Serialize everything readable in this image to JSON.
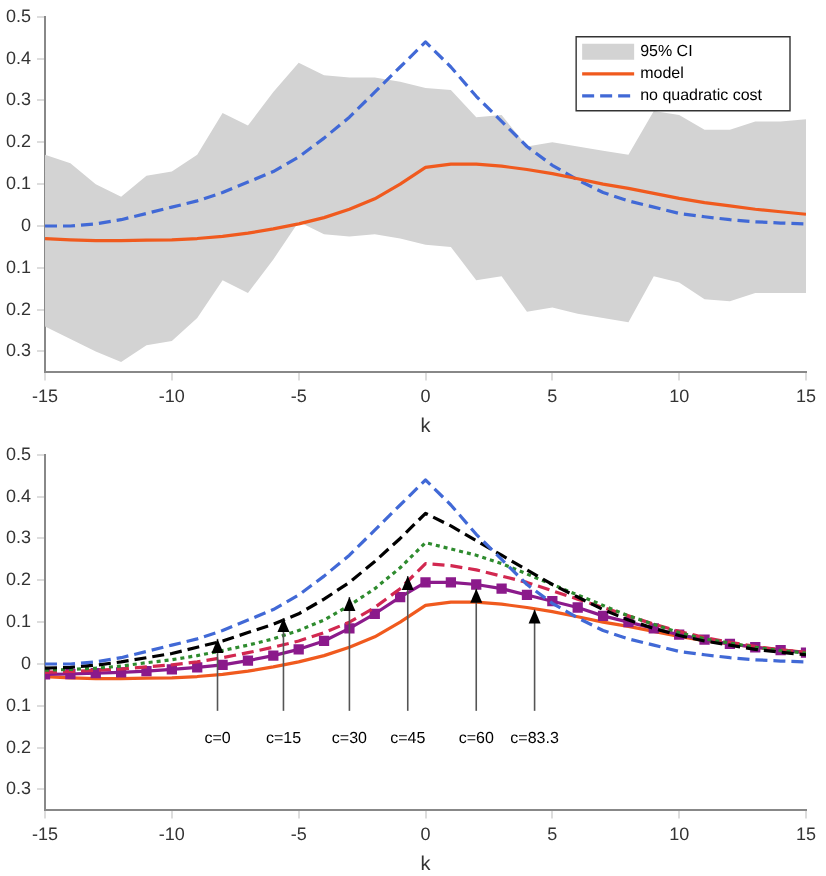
{
  "chart_data": [
    {
      "type": "line",
      "xlabel": "k",
      "x": [
        -15,
        -14,
        -13,
        -12,
        -11,
        -10,
        -9,
        -8,
        -7,
        -6,
        -5,
        -4,
        -3,
        -2,
        -1,
        0,
        1,
        2,
        3,
        4,
        5,
        6,
        7,
        8,
        9,
        10,
        11,
        12,
        13,
        14,
        15
      ],
      "xlim": [
        -15,
        15
      ],
      "xticks": [
        -15,
        -10,
        -5,
        0,
        5,
        10,
        15
      ],
      "ylim": [
        -0.35,
        0.5
      ],
      "yticks": [
        {
          "value": -0.3,
          "label": "0.3"
        },
        {
          "value": -0.2,
          "label": "0.2"
        },
        {
          "value": -0.1,
          "label": "0.1"
        },
        0,
        0.1,
        0.2,
        0.3,
        0.4,
        0.5
      ],
      "grid": false,
      "legend": "top right",
      "series": [
        {
          "name": "95% CI",
          "type": "area",
          "color": "#d3d3d3",
          "values": [
            null,
            null,
            null,
            null,
            null,
            null,
            null,
            null,
            null,
            null,
            null,
            null,
            null,
            null,
            null,
            null,
            null,
            null,
            null,
            null,
            null,
            null,
            null,
            null,
            null,
            null,
            null,
            null,
            null,
            null,
            null
          ],
          "lower": [
            -0.24,
            -0.27,
            -0.3,
            -0.325,
            -0.285,
            -0.275,
            -0.22,
            -0.13,
            -0.16,
            -0.08,
            0.01,
            -0.02,
            -0.025,
            -0.02,
            -0.03,
            -0.045,
            -0.05,
            -0.13,
            -0.12,
            -0.205,
            -0.195,
            -0.21,
            -0.22,
            -0.23,
            -0.12,
            -0.135,
            -0.175,
            -0.18,
            -0.16,
            -0.16,
            -0.16
          ],
          "upper": [
            0.17,
            0.15,
            0.1,
            0.07,
            0.12,
            0.13,
            0.17,
            0.27,
            0.24,
            0.32,
            0.39,
            0.36,
            0.355,
            0.355,
            0.345,
            0.33,
            0.325,
            0.26,
            0.265,
            0.19,
            0.2,
            0.19,
            0.18,
            0.17,
            0.275,
            0.265,
            0.23,
            0.23,
            0.25,
            0.25,
            0.255
          ]
        },
        {
          "name": "model",
          "color": "#f05a1e",
          "line_style": "solid",
          "values": [
            -0.03,
            -0.033,
            -0.035,
            -0.035,
            -0.034,
            -0.033,
            -0.03,
            -0.025,
            -0.017,
            -0.007,
            0.005,
            0.02,
            0.04,
            0.065,
            0.1,
            0.14,
            0.148,
            0.148,
            0.143,
            0.135,
            0.125,
            0.113,
            0.1,
            0.09,
            0.078,
            0.066,
            0.056,
            0.048,
            0.04,
            0.034,
            0.028
          ]
        },
        {
          "name": "no quadratic cost",
          "color": "#4169d6",
          "line_style": "dashed",
          "values": [
            0,
            0,
            0.005,
            0.015,
            0.03,
            0.045,
            0.06,
            0.08,
            0.105,
            0.13,
            0.165,
            0.21,
            0.26,
            0.32,
            0.38,
            0.44,
            0.38,
            0.31,
            0.25,
            0.19,
            0.145,
            0.11,
            0.08,
            0.06,
            0.045,
            0.03,
            0.022,
            0.015,
            0.01,
            0.007,
            0.005
          ]
        }
      ]
    },
    {
      "type": "line",
      "xlabel": "k",
      "x": [
        -15,
        -14,
        -13,
        -12,
        -11,
        -10,
        -9,
        -8,
        -7,
        -6,
        -5,
        -4,
        -3,
        -2,
        -1,
        0,
        1,
        2,
        3,
        4,
        5,
        6,
        7,
        8,
        9,
        10,
        11,
        12,
        13,
        14,
        15
      ],
      "xlim": [
        -15,
        15
      ],
      "xticks": [
        -15,
        -10,
        -5,
        0,
        5,
        10,
        15
      ],
      "ylim": [
        -0.35,
        0.5
      ],
      "yticks": [
        {
          "value": -0.3,
          "label": "0.3"
        },
        {
          "value": -0.2,
          "label": "0.2"
        },
        {
          "value": -0.1,
          "label": "0.1"
        },
        0,
        0.1,
        0.2,
        0.3,
        0.4,
        0.5
      ],
      "grid": false,
      "series": [
        {
          "color": "#4169d6",
          "line_style": "dashed",
          "values": [
            0,
            0,
            0.005,
            0.015,
            0.03,
            0.045,
            0.06,
            0.08,
            0.105,
            0.13,
            0.165,
            0.21,
            0.26,
            0.32,
            0.38,
            0.44,
            0.38,
            0.31,
            0.25,
            0.19,
            0.145,
            0.11,
            0.08,
            0.06,
            0.045,
            0.03,
            0.022,
            0.015,
            0.01,
            0.007,
            0.005
          ]
        },
        {
          "color": "#000000",
          "line_style": "dashed",
          "values": [
            -0.01,
            -0.008,
            -0.003,
            0.005,
            0.015,
            0.025,
            0.04,
            0.055,
            0.075,
            0.095,
            0.12,
            0.155,
            0.195,
            0.245,
            0.3,
            0.36,
            0.33,
            0.295,
            0.26,
            0.225,
            0.19,
            0.16,
            0.13,
            0.105,
            0.085,
            0.068,
            0.055,
            0.045,
            0.035,
            0.028,
            0.022
          ]
        },
        {
          "color": "#2e8b2e",
          "line_style": "dotted",
          "values": [
            -0.015,
            -0.013,
            -0.01,
            -0.005,
            0.003,
            0.01,
            0.02,
            0.032,
            0.045,
            0.06,
            0.08,
            0.105,
            0.14,
            0.18,
            0.23,
            0.29,
            0.275,
            0.26,
            0.24,
            0.215,
            0.19,
            0.165,
            0.14,
            0.115,
            0.095,
            0.075,
            0.06,
            0.05,
            0.04,
            0.032,
            0.026
          ]
        },
        {
          "color": "#d22850",
          "line_style": "dashed",
          "values": [
            -0.02,
            -0.018,
            -0.015,
            -0.012,
            -0.007,
            -0.002,
            0.005,
            0.015,
            0.027,
            0.04,
            0.055,
            0.075,
            0.1,
            0.135,
            0.18,
            0.24,
            0.235,
            0.225,
            0.21,
            0.195,
            0.175,
            0.155,
            0.135,
            0.115,
            0.095,
            0.078,
            0.063,
            0.052,
            0.042,
            0.034,
            0.028
          ]
        },
        {
          "color": "#8b1a8b",
          "line_style": "solid",
          "marker": "square",
          "values": [
            -0.025,
            -0.024,
            -0.022,
            -0.02,
            -0.017,
            -0.013,
            -0.008,
            -0.002,
            0.008,
            0.02,
            0.035,
            0.055,
            0.085,
            0.12,
            0.16,
            0.195,
            0.195,
            0.19,
            0.18,
            0.165,
            0.15,
            0.135,
            0.115,
            0.1,
            0.085,
            0.07,
            0.058,
            0.048,
            0.04,
            0.033,
            0.027
          ]
        },
        {
          "color": "#f05a1e",
          "line_style": "solid",
          "values": [
            -0.03,
            -0.033,
            -0.035,
            -0.035,
            -0.034,
            -0.033,
            -0.03,
            -0.025,
            -0.017,
            -0.007,
            0.005,
            0.02,
            0.04,
            0.065,
            0.1,
            0.14,
            0.148,
            0.148,
            0.143,
            0.135,
            0.125,
            0.113,
            0.1,
            0.09,
            0.078,
            0.066,
            0.056,
            0.048,
            0.04,
            0.034,
            0.028
          ]
        }
      ],
      "annotations": [
        {
          "text": "c=0",
          "x": -8.2,
          "y": 0.06
        },
        {
          "text": "c=15",
          "x": -5.6,
          "y": 0.11
        },
        {
          "text": "c=30",
          "x": -3,
          "y": 0.16
        },
        {
          "text": "c=45",
          "x": -0.7,
          "y": 0.21
        },
        {
          "text": "c=60",
          "x": 2,
          "y": 0.18
        },
        {
          "text": "c=83.3",
          "x": 4.3,
          "y": 0.13
        }
      ]
    }
  ]
}
